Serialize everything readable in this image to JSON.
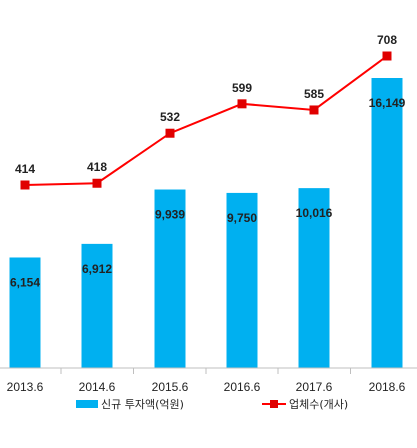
{
  "chart_data": {
    "type": "bar",
    "categories": [
      "2013.6",
      "2014.6",
      "2015.6",
      "2016.6",
      "2017.6",
      "2018.6"
    ],
    "series": [
      {
        "name": "신규 투자액(억원)",
        "type": "bar",
        "values": [
          6154,
          6912,
          9939,
          9750,
          10016,
          16149
        ],
        "value_labels": [
          "6,154",
          "6,912",
          "9,939",
          "9,750",
          "10,016",
          "16,149"
        ],
        "color": "#00b0f0"
      },
      {
        "name": "업체수(개사)",
        "type": "line",
        "values": [
          414,
          418,
          532,
          599,
          585,
          708
        ],
        "value_labels": [
          "414",
          "418",
          "532",
          "599",
          "585",
          "708"
        ],
        "color": "#ff0000",
        "marker_color": "#e00000"
      }
    ],
    "title": "",
    "xlabel": "",
    "ylabel": "",
    "grid": false,
    "legend_position": "bottom"
  }
}
